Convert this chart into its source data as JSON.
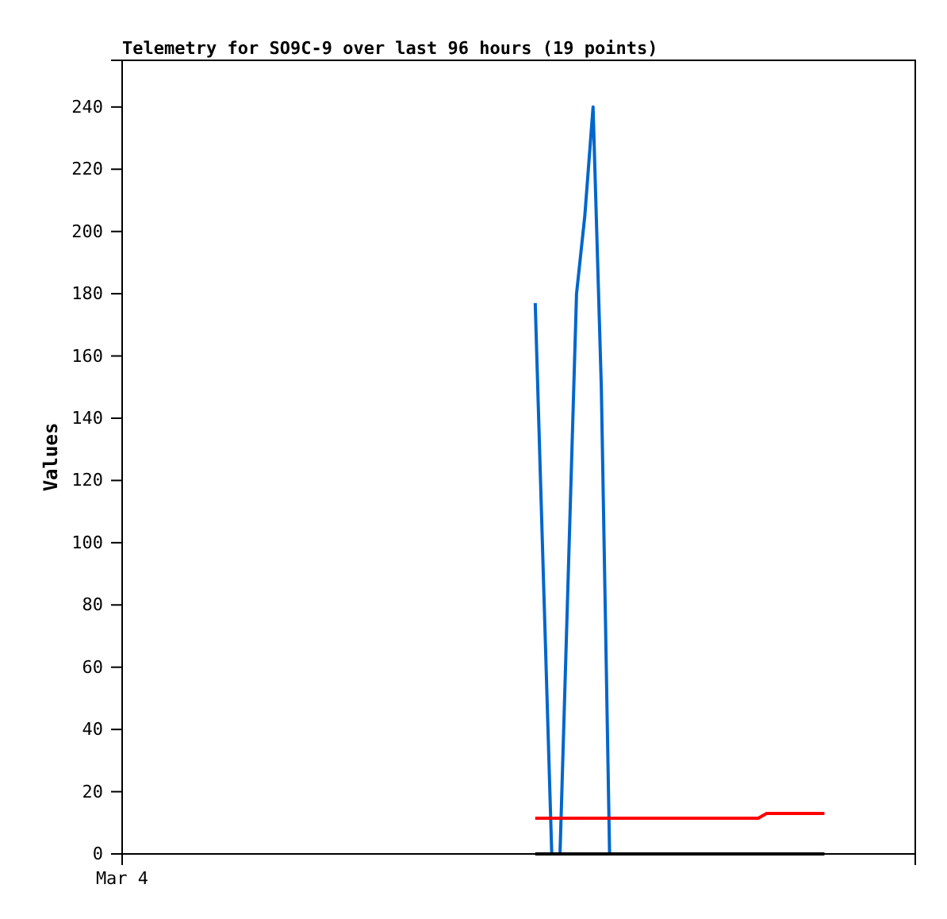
{
  "chart_data": {
    "type": "line",
    "title": "Telemetry for SO9C-9 over last 96 hours (19 points)",
    "ylabel": "Values",
    "categories": [
      "Mar 4",
      null,
      null,
      null,
      null,
      null,
      null,
      null,
      null,
      null,
      null,
      null,
      null,
      null,
      null,
      null,
      null,
      null,
      null,
      null,
      null,
      null,
      null,
      null,
      null,
      null,
      null,
      null,
      null,
      null,
      null,
      null,
      null,
      null,
      null,
      null,
      null,
      null,
      null,
      null,
      null,
      null,
      null,
      null,
      null,
      null,
      null,
      null,
      null,
      null,
      null,
      null,
      null,
      null,
      null,
      null,
      null,
      null,
      null,
      null,
      null,
      null,
      null,
      null,
      null,
      null,
      null,
      null,
      null,
      null,
      null,
      null,
      null,
      null,
      null,
      null,
      null,
      null,
      null,
      null,
      null,
      null,
      null,
      null,
      null,
      null,
      null,
      null,
      null,
      null,
      null,
      null,
      null,
      null,
      null,
      null,
      null
    ],
    "ylim": [
      0,
      255
    ],
    "yticks": [
      0,
      20,
      40,
      60,
      80,
      100,
      120,
      140,
      160,
      180,
      200,
      220,
      240
    ],
    "series": [
      {
        "color": "#0066cc",
        "values": [
          null,
          null,
          null,
          null,
          null,
          null,
          null,
          null,
          null,
          null,
          null,
          null,
          null,
          null,
          null,
          null,
          null,
          null,
          null,
          null,
          null,
          null,
          null,
          null,
          null,
          null,
          null,
          null,
          null,
          null,
          null,
          null,
          null,
          null,
          null,
          null,
          null,
          null,
          null,
          null,
          null,
          null,
          null,
          null,
          null,
          null,
          null,
          null,
          null,
          null,
          177,
          88,
          0,
          0,
          90,
          180,
          205,
          240,
          150,
          0,
          null,
          null,
          null,
          null,
          null,
          null,
          null,
          null,
          null,
          null,
          null,
          null,
          null,
          null,
          null,
          null,
          null,
          null,
          null,
          null,
          null,
          null,
          null,
          null,
          null,
          null,
          null,
          null,
          null,
          null,
          null,
          null,
          null,
          null,
          null,
          null,
          null
        ]
      },
      {
        "color": "#ff0000",
        "values": [
          null,
          null,
          null,
          null,
          null,
          null,
          null,
          null,
          null,
          null,
          null,
          null,
          null,
          null,
          null,
          null,
          null,
          null,
          null,
          null,
          null,
          null,
          null,
          null,
          null,
          null,
          null,
          null,
          null,
          null,
          null,
          null,
          null,
          null,
          null,
          null,
          null,
          null,
          null,
          null,
          null,
          null,
          null,
          null,
          null,
          null,
          null,
          null,
          null,
          null,
          11.5,
          11.5,
          11.5,
          11.5,
          11.5,
          11.5,
          11.5,
          11.5,
          11.5,
          11.5,
          11.5,
          11.5,
          11.5,
          11.5,
          11.5,
          11.5,
          11.5,
          11.5,
          11.5,
          11.5,
          11.5,
          11.5,
          11.5,
          11.5,
          11.5,
          11.5,
          11.5,
          11.5,
          13,
          13,
          13,
          13,
          13,
          13,
          13,
          13,
          null,
          null,
          null,
          null,
          null,
          null,
          null,
          null,
          null,
          null,
          null
        ]
      },
      {
        "color": "#000000",
        "values": [
          null,
          null,
          null,
          null,
          null,
          null,
          null,
          null,
          null,
          null,
          null,
          null,
          null,
          null,
          null,
          null,
          null,
          null,
          null,
          null,
          null,
          null,
          null,
          null,
          null,
          null,
          null,
          null,
          null,
          null,
          null,
          null,
          null,
          null,
          null,
          null,
          null,
          null,
          null,
          null,
          null,
          null,
          null,
          null,
          null,
          null,
          null,
          null,
          null,
          null,
          0,
          0,
          0,
          0,
          0,
          0,
          0,
          0,
          0,
          0,
          0,
          0,
          0,
          0,
          0,
          0,
          0,
          0,
          0,
          0,
          0,
          0,
          0,
          0,
          0,
          0,
          0,
          0,
          0,
          0,
          0,
          0,
          0,
          0,
          0,
          0,
          null,
          null,
          null,
          null,
          null,
          null,
          null,
          null,
          null,
          null,
          null
        ]
      }
    ]
  }
}
